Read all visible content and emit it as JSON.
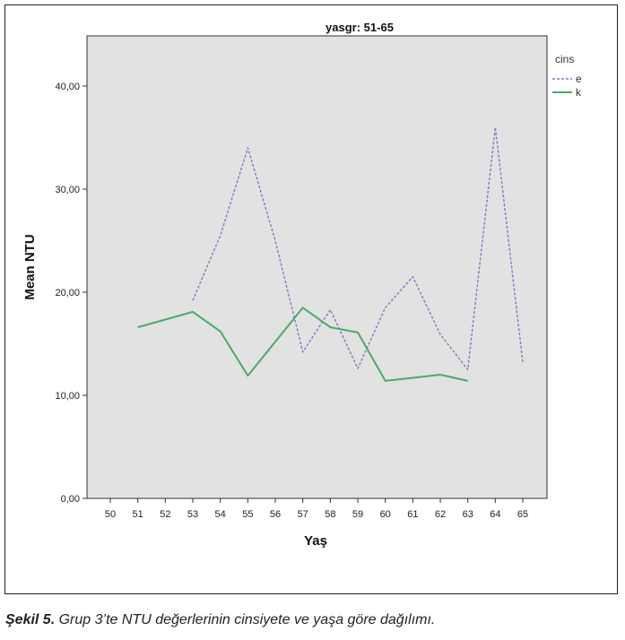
{
  "chart_data": {
    "type": "line",
    "title": "yasgr: 51-65",
    "xlabel": "Yaş",
    "ylabel": "Mean NTU",
    "categories": [
      "50",
      "51",
      "52",
      "53",
      "54",
      "55",
      "56",
      "57",
      "58",
      "59",
      "60",
      "61",
      "62",
      "63",
      "64",
      "65"
    ],
    "y_ticks": [
      "0,00",
      "10,00",
      "20,00",
      "30,00",
      "40,00"
    ],
    "ylim": [
      0,
      45
    ],
    "legend": {
      "title": "cins",
      "placement": "top-right"
    },
    "grid": false,
    "background_color": "#e2e2e2",
    "series": [
      {
        "name": "e",
        "color": "#7b7bbf",
        "dash": true,
        "points": [
          {
            "x": "53",
            "y": 19.2
          },
          {
            "x": "54",
            "y": 25.5
          },
          {
            "x": "55",
            "y": 34.0
          },
          {
            "x": "56",
            "y": 25.0
          },
          {
            "x": "57",
            "y": 14.2
          },
          {
            "x": "58",
            "y": 18.3
          },
          {
            "x": "59",
            "y": 12.6
          },
          {
            "x": "60",
            "y": 18.5
          },
          {
            "x": "61",
            "y": 21.5
          },
          {
            "x": "62",
            "y": 15.9
          },
          {
            "x": "63",
            "y": 12.5
          },
          {
            "x": "64",
            "y": 36.0
          },
          {
            "x": "65",
            "y": 13.2
          }
        ]
      },
      {
        "name": "k",
        "color": "#4aaa6a",
        "dash": false,
        "points": [
          {
            "x": "51",
            "y": 16.6
          },
          {
            "x": "53",
            "y": 18.1
          },
          {
            "x": "54",
            "y": 16.2
          },
          {
            "x": "55",
            "y": 11.9
          },
          {
            "x": "57",
            "y": 18.5
          },
          {
            "x": "58",
            "y": 16.6
          },
          {
            "x": "59",
            "y": 16.1
          },
          {
            "x": "60",
            "y": 11.4
          },
          {
            "x": "61",
            "y": 11.7
          },
          {
            "x": "62",
            "y": 12.0
          },
          {
            "x": "63",
            "y": 11.4
          }
        ]
      }
    ]
  },
  "caption": {
    "label": "Şekil 5.",
    "text": "Grup 3’te NTU değerlerinin cinsiyete ve yaşa göre dağılımı."
  }
}
